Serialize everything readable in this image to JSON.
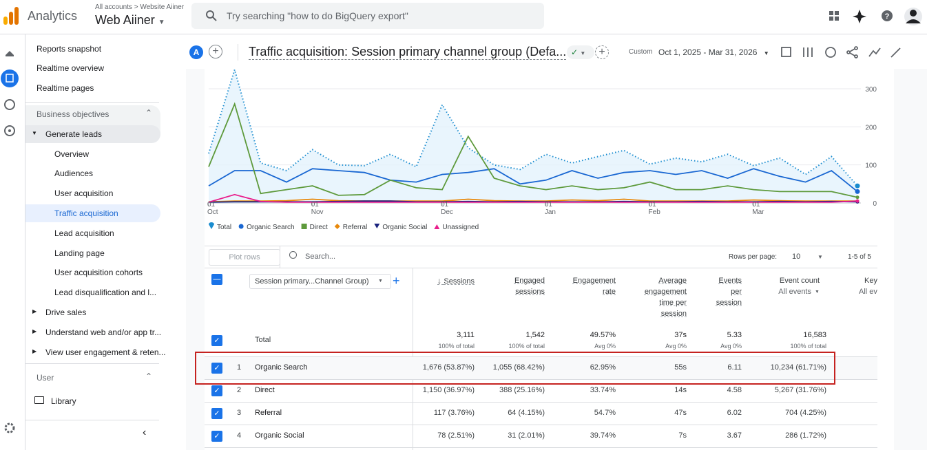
{
  "header": {
    "product": "Analytics",
    "breadcrumb_accounts": "All accounts",
    "breadcrumb_property": "Website Aiiner",
    "property": "Web Aiiner",
    "search_placeholder": "Try searching \"how to do BigQuery export\""
  },
  "nav": {
    "items": [
      "Reports snapshot",
      "Realtime overview",
      "Realtime pages",
      "Business objectives",
      "Generate leads",
      "Overview",
      "Audiences",
      "User acquisition",
      "Traffic acquisition",
      "Lead acquisition",
      "Landing page",
      "User acquisition cohorts",
      "Lead disqualification and l...",
      "Drive sales",
      "Understand web and/or app tr...",
      "View user engagement & reten...",
      "User",
      "Library"
    ]
  },
  "report": {
    "avatar": "A",
    "title": "Traffic acquisition: Session primary channel group (Defa...",
    "date_label": "Custom",
    "date_range": "Oct 1, 2025 - Mar 31, 2026"
  },
  "chart_data": {
    "type": "line",
    "categories": [
      "01\nOct",
      null,
      null,
      null,
      "01\nNov",
      null,
      null,
      null,
      null,
      "01\nDec",
      null,
      null,
      null,
      "01\nJan",
      null,
      null,
      null,
      "01\nFeb",
      null,
      null,
      null,
      "01\nMar",
      null,
      null,
      null,
      null
    ],
    "ylim": [
      0,
      300
    ],
    "yticks": [
      0,
      100,
      200,
      300
    ],
    "grid": true,
    "series": [
      {
        "name": "Total",
        "color": "#1a8ccf",
        "values": [
          130,
          350,
          105,
          85,
          140,
          100,
          98,
          128,
          95,
          258,
          145,
          100,
          88,
          128,
          105,
          122,
          138,
          102,
          118,
          108,
          128,
          98,
          118,
          75,
          122,
          45
        ]
      },
      {
        "name": "Organic Search",
        "color": "#1967d2",
        "values": [
          45,
          85,
          85,
          55,
          90,
          85,
          80,
          60,
          55,
          75,
          80,
          90,
          50,
          60,
          85,
          65,
          80,
          85,
          75,
          85,
          65,
          90,
          70,
          55,
          85,
          30
        ]
      },
      {
        "name": "Direct",
        "color": "#5e9a3c",
        "values": [
          95,
          260,
          25,
          35,
          45,
          20,
          22,
          60,
          40,
          35,
          175,
          65,
          45,
          35,
          45,
          35,
          40,
          55,
          35,
          35,
          45,
          35,
          30,
          30,
          30,
          15
        ]
      },
      {
        "name": "Referral",
        "color": "#e8890c",
        "values": [
          3,
          5,
          5,
          6,
          10,
          6,
          5,
          5,
          5,
          5,
          10,
          6,
          5,
          5,
          8,
          6,
          10,
          5,
          5,
          5,
          5,
          8,
          6,
          5,
          5,
          5
        ]
      },
      {
        "name": "Organic Social",
        "color": "#1a237e",
        "values": [
          2,
          3,
          3,
          3,
          3,
          4,
          5,
          5,
          3,
          3,
          4,
          3,
          4,
          3,
          3,
          3,
          4,
          3,
          3,
          4,
          3,
          3,
          4,
          3,
          4,
          3
        ]
      },
      {
        "name": "Unassigned",
        "color": "#e91e8c",
        "values": [
          2,
          22,
          4,
          2,
          2,
          2,
          2,
          2,
          2,
          2,
          2,
          2,
          2,
          2,
          2,
          2,
          2,
          2,
          2,
          2,
          2,
          2,
          2,
          2,
          2,
          5
        ]
      }
    ]
  },
  "table": {
    "plot_rows": "Plot rows",
    "search": "Search...",
    "rows_per_page_label": "Rows per page:",
    "rows_per_page": "10",
    "pagination": "1-5 of 5",
    "dimension": "Session primary...Channel Group)",
    "columns": [
      "Sessions",
      "Engaged\nsessions",
      "Engagement\nrate",
      "Average\nengagement\ntime per\nsession",
      "Events\nper\nsession",
      "Event count",
      "Key"
    ],
    "column_subs": [
      "All events",
      "All ev"
    ],
    "total": {
      "label": "Total",
      "values": [
        "3,111",
        "1,542",
        "49.57%",
        "37s",
        "5.33",
        "16,583"
      ],
      "subs": [
        "100% of total",
        "100% of total",
        "Avg 0%",
        "Avg 0%",
        "Avg 0%",
        "100% of total"
      ]
    },
    "rows": [
      [
        "1",
        "Organic Search",
        "1,676 (53.87%)",
        "1,055 (68.42%)",
        "62.95%",
        "55s",
        "6.11",
        "10,234 (61.71%)"
      ],
      [
        "2",
        "Direct",
        "1,150 (36.97%)",
        "388 (25.16%)",
        "33.74%",
        "14s",
        "4.58",
        "5,267 (31.76%)"
      ],
      [
        "3",
        "Referral",
        "117 (3.76%)",
        "64 (4.15%)",
        "54.7%",
        "47s",
        "6.02",
        "704 (4.25%)"
      ],
      [
        "4",
        "Organic Social",
        "78 (2.51%)",
        "31 (2.01%)",
        "39.74%",
        "7s",
        "3.67",
        "286 (1.72%)"
      ]
    ]
  }
}
